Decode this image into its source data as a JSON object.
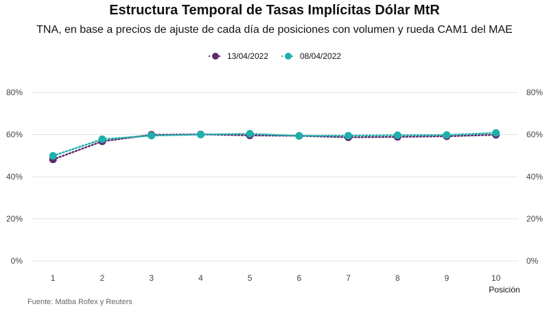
{
  "chart_data": {
    "type": "line",
    "title": "Estructura Temporal de Tasas Implícitas Dólar MtR",
    "subtitle": "TNA, en base a precios de ajuste de cada día de posiciones con volumen y rueda CAM1 del MAE",
    "xlabel": "Posición",
    "ylabel": "",
    "x": [
      1,
      2,
      3,
      4,
      5,
      6,
      7,
      8,
      9,
      10
    ],
    "xlim": [
      0.55,
      10.45
    ],
    "ylim": [
      0,
      80
    ],
    "y_ticks": [
      0,
      20,
      40,
      60,
      80
    ],
    "y_tick_labels": [
      "0%",
      "20%",
      "40%",
      "60%",
      "80%"
    ],
    "x_tick_labels": [
      "1",
      "2",
      "3",
      "4",
      "5",
      "6",
      "7",
      "8",
      "9",
      "10"
    ],
    "grid": true,
    "legend_position": "top",
    "secondary_y_axis": true,
    "series": [
      {
        "name": "13/04/2022",
        "color": "#5e2c6e",
        "values": [
          48.2,
          56.8,
          59.9,
          60.1,
          59.6,
          59.4,
          58.7,
          58.9,
          59.2,
          59.9
        ]
      },
      {
        "name": "08/04/2022",
        "color": "#1eb0ad",
        "values": [
          49.9,
          57.8,
          59.5,
          60.0,
          60.4,
          59.4,
          59.5,
          59.7,
          59.8,
          60.8
        ]
      }
    ],
    "source": "Fuente: Matba Rofex y Reuters"
  }
}
